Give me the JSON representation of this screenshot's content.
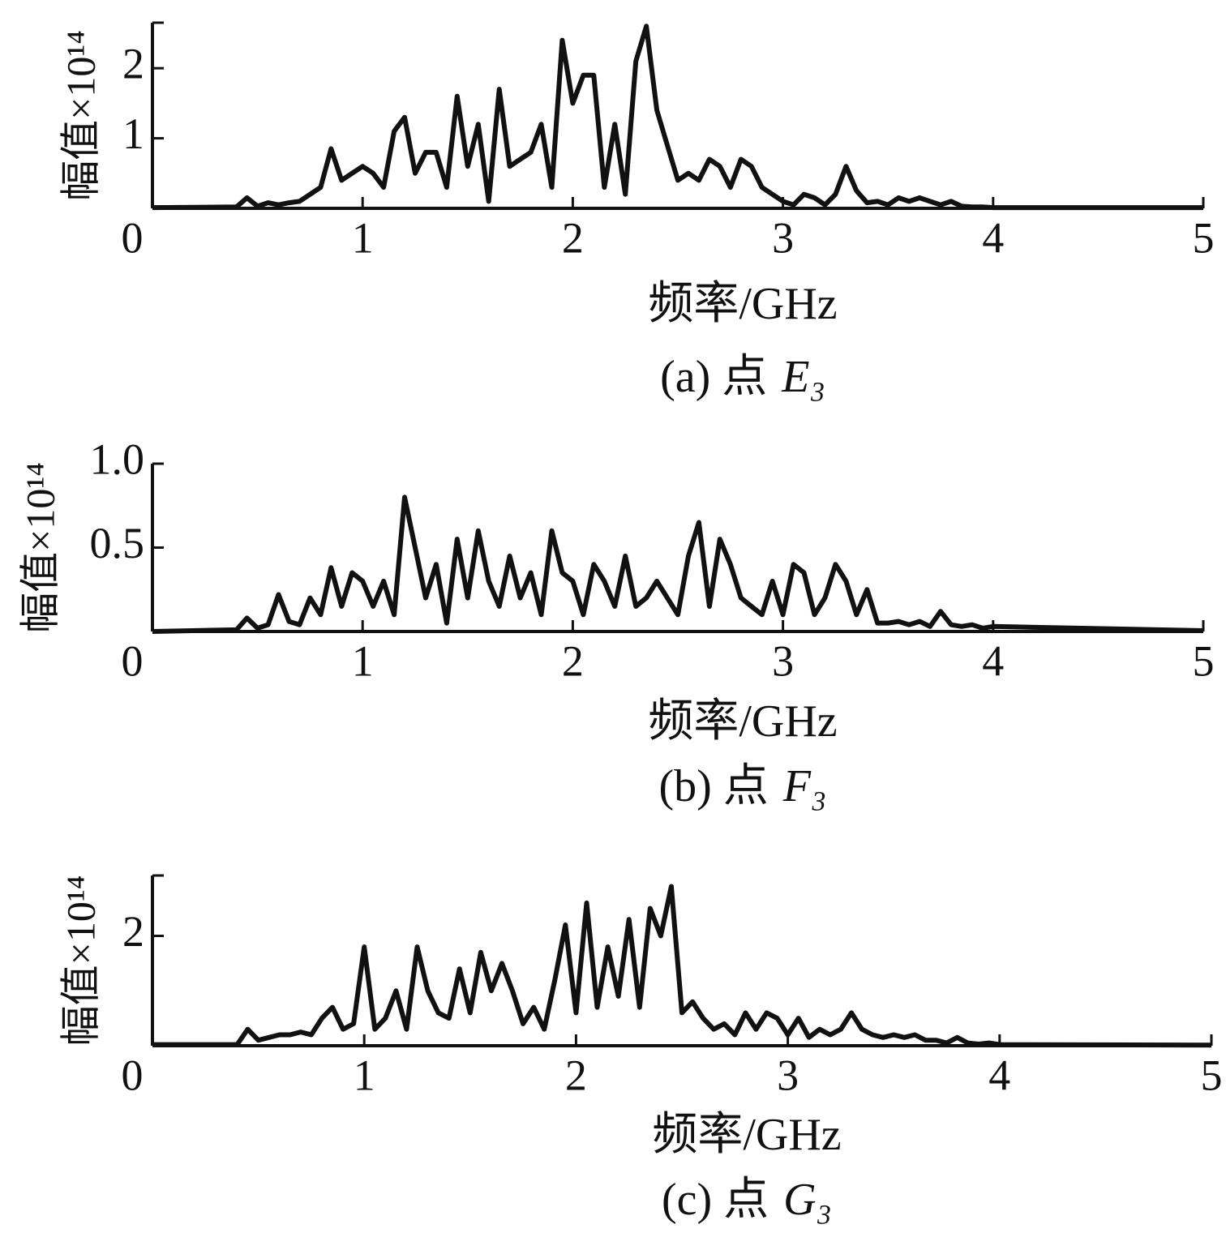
{
  "chart_data": [
    {
      "type": "line",
      "ylabel": "幅值×10¹⁴",
      "xlabel": "频率/GHz",
      "caption": "(a) 点",
      "point": "E₃",
      "color": "#111111",
      "x": [
        0,
        0.4,
        0.45,
        0.5,
        0.55,
        0.6,
        0.65,
        0.7,
        0.75,
        0.8,
        0.85,
        0.9,
        0.95,
        1.0,
        1.05,
        1.1,
        1.15,
        1.2,
        1.25,
        1.3,
        1.35,
        1.4,
        1.45,
        1.5,
        1.55,
        1.6,
        1.65,
        1.7,
        1.75,
        1.8,
        1.85,
        1.9,
        1.95,
        2.0,
        2.05,
        2.1,
        2.15,
        2.2,
        2.25,
        2.3,
        2.35,
        2.4,
        2.45,
        2.5,
        2.55,
        2.6,
        2.65,
        2.7,
        2.75,
        2.8,
        2.85,
        2.9,
        2.95,
        3.0,
        3.05,
        3.1,
        3.15,
        3.2,
        3.25,
        3.3,
        3.35,
        3.4,
        3.45,
        3.5,
        3.55,
        3.6,
        3.65,
        3.7,
        3.75,
        3.8,
        3.85,
        3.9,
        3.95,
        4.0,
        5
      ],
      "values": [
        0.01,
        0.02,
        0.15,
        0.03,
        0.08,
        0.05,
        0.08,
        0.1,
        0.2,
        0.3,
        0.85,
        0.4,
        0.5,
        0.6,
        0.5,
        0.3,
        1.1,
        1.3,
        0.5,
        0.8,
        0.8,
        0.3,
        1.6,
        0.6,
        1.2,
        0.1,
        1.7,
        0.6,
        0.7,
        0.8,
        1.2,
        0.3,
        2.4,
        1.5,
        1.9,
        1.9,
        0.3,
        1.2,
        0.2,
        2.1,
        2.6,
        1.4,
        0.9,
        0.4,
        0.5,
        0.4,
        0.7,
        0.6,
        0.3,
        0.7,
        0.6,
        0.3,
        0.2,
        0.1,
        0.05,
        0.2,
        0.15,
        0.05,
        0.2,
        0.6,
        0.25,
        0.08,
        0.1,
        0.05,
        0.15,
        0.1,
        0.15,
        0.1,
        0.05,
        0.1,
        0.03,
        0.02,
        0.02,
        0.01,
        0.01
      ],
      "xlim": [
        0,
        5
      ],
      "xticks": [
        0,
        1,
        2,
        3,
        4,
        5
      ],
      "ylim": [
        0,
        2.65
      ],
      "yticks": [
        1,
        2
      ]
    },
    {
      "type": "line",
      "ylabel": "幅值×10¹⁴",
      "xlabel": "频率/GHz",
      "caption": "(b) 点",
      "point": "F₃",
      "color": "#111111",
      "x": [
        0,
        0.4,
        0.45,
        0.5,
        0.55,
        0.6,
        0.65,
        0.7,
        0.75,
        0.8,
        0.85,
        0.9,
        0.95,
        1.0,
        1.05,
        1.1,
        1.15,
        1.2,
        1.25,
        1.3,
        1.35,
        1.4,
        1.45,
        1.5,
        1.55,
        1.6,
        1.65,
        1.7,
        1.75,
        1.8,
        1.85,
        1.9,
        1.95,
        2.0,
        2.05,
        2.1,
        2.15,
        2.2,
        2.25,
        2.3,
        2.35,
        2.4,
        2.45,
        2.5,
        2.55,
        2.6,
        2.65,
        2.7,
        2.75,
        2.8,
        2.85,
        2.9,
        2.95,
        3.0,
        3.05,
        3.1,
        3.15,
        3.2,
        3.25,
        3.3,
        3.35,
        3.4,
        3.45,
        3.5,
        3.55,
        3.6,
        3.65,
        3.7,
        3.75,
        3.8,
        3.85,
        3.9,
        3.95,
        4.0,
        5
      ],
      "values": [
        0,
        0.01,
        0.08,
        0.02,
        0.04,
        0.22,
        0.06,
        0.04,
        0.2,
        0.1,
        0.38,
        0.15,
        0.35,
        0.3,
        0.15,
        0.3,
        0.1,
        0.8,
        0.5,
        0.2,
        0.4,
        0.05,
        0.55,
        0.2,
        0.6,
        0.3,
        0.15,
        0.45,
        0.2,
        0.35,
        0.1,
        0.6,
        0.35,
        0.3,
        0.1,
        0.4,
        0.3,
        0.15,
        0.45,
        0.15,
        0.2,
        0.3,
        0.2,
        0.1,
        0.45,
        0.65,
        0.15,
        0.55,
        0.4,
        0.2,
        0.15,
        0.1,
        0.3,
        0.1,
        0.4,
        0.35,
        0.1,
        0.2,
        0.4,
        0.3,
        0.1,
        0.25,
        0.05,
        0.05,
        0.06,
        0.04,
        0.06,
        0.03,
        0.12,
        0.04,
        0.03,
        0.04,
        0.02,
        0.03,
        0.005
      ],
      "xlim": [
        0,
        5
      ],
      "xticks": [
        0,
        1,
        2,
        3,
        4,
        5
      ],
      "ylim": [
        0,
        1
      ],
      "yticks": [
        0.5,
        {
          "value": 1,
          "label": "1.0"
        }
      ]
    },
    {
      "type": "line",
      "ylabel": "幅值×10¹⁴",
      "xlabel": "频率/GHz",
      "caption": "(c) 点",
      "point": "G₃",
      "color": "#111111",
      "x": [
        0,
        0.4,
        0.45,
        0.5,
        0.55,
        0.6,
        0.65,
        0.7,
        0.75,
        0.8,
        0.85,
        0.9,
        0.95,
        1.0,
        1.05,
        1.1,
        1.15,
        1.2,
        1.25,
        1.3,
        1.35,
        1.4,
        1.45,
        1.5,
        1.55,
        1.6,
        1.65,
        1.7,
        1.75,
        1.8,
        1.85,
        1.9,
        1.95,
        2.0,
        2.05,
        2.1,
        2.15,
        2.2,
        2.25,
        2.3,
        2.35,
        2.4,
        2.45,
        2.5,
        2.55,
        2.6,
        2.65,
        2.7,
        2.75,
        2.8,
        2.85,
        2.9,
        2.95,
        3.0,
        3.05,
        3.1,
        3.15,
        3.2,
        3.25,
        3.3,
        3.35,
        3.4,
        3.45,
        3.5,
        3.55,
        3.6,
        3.65,
        3.7,
        3.75,
        3.8,
        3.85,
        3.9,
        3.95,
        4.0,
        5
      ],
      "values": [
        0.02,
        0.02,
        0.3,
        0.1,
        0.15,
        0.2,
        0.2,
        0.25,
        0.2,
        0.5,
        0.7,
        0.3,
        0.4,
        1.8,
        0.3,
        0.5,
        1.0,
        0.3,
        1.8,
        1.0,
        0.6,
        0.5,
        1.4,
        0.6,
        1.7,
        1.0,
        1.5,
        1.0,
        0.4,
        0.7,
        0.3,
        1.2,
        2.2,
        0.6,
        2.6,
        0.7,
        1.8,
        0.9,
        2.3,
        0.7,
        2.5,
        2.0,
        2.9,
        0.6,
        0.8,
        0.5,
        0.3,
        0.4,
        0.2,
        0.6,
        0.3,
        0.6,
        0.5,
        0.2,
        0.5,
        0.15,
        0.3,
        0.2,
        0.3,
        0.6,
        0.3,
        0.2,
        0.15,
        0.2,
        0.15,
        0.2,
        0.1,
        0.1,
        0.05,
        0.15,
        0.05,
        0.03,
        0.05,
        0.02,
        0.01
      ],
      "xlim": [
        0,
        5
      ],
      "xticks": [
        0,
        1,
        2,
        3,
        4,
        5
      ],
      "ylim": [
        0,
        3.1
      ],
      "yticks": [
        2
      ]
    }
  ]
}
